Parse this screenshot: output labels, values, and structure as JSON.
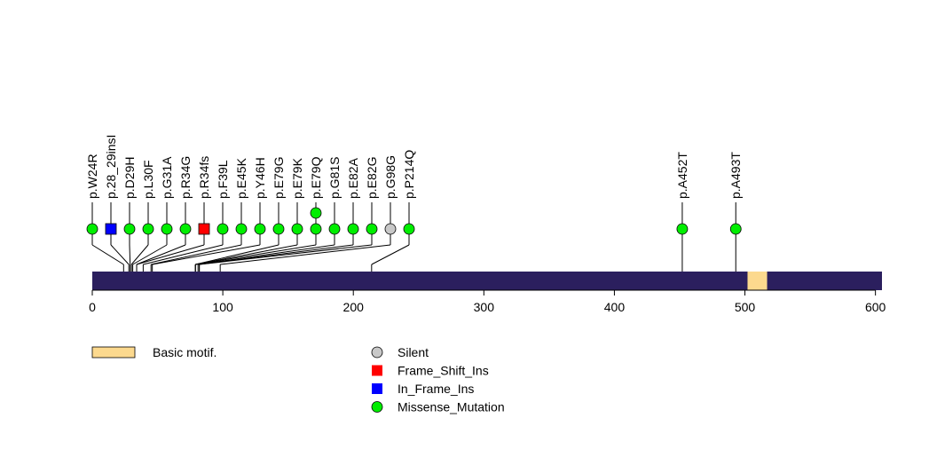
{
  "chart_data": {
    "type": "lollipop",
    "protein_length": 605,
    "axis": {
      "xlim": [
        0,
        605
      ],
      "ticks": [
        0,
        100,
        200,
        300,
        400,
        500,
        600
      ]
    },
    "colors": {
      "backbone": "#2b1f5e",
      "domain": "#fcd98e",
      "Silent": "#c8c8c8",
      "Frame_Shift_Ins": "#ff0000",
      "In_Frame_Ins": "#0000ff",
      "Missense_Mutation": "#00ee00"
    },
    "domains": [
      {
        "name": "Basic motif.",
        "start": 502,
        "end": 517
      }
    ],
    "mutations": [
      {
        "label": "p.W24R",
        "position": 24,
        "type": "Missense_Mutation",
        "count": 1
      },
      {
        "label": "p.28_29insI",
        "position": 28,
        "type": "In_Frame_Ins",
        "count": 1
      },
      {
        "label": "p.D29H",
        "position": 29,
        "type": "Missense_Mutation",
        "count": 1
      },
      {
        "label": "p.L30F",
        "position": 30,
        "type": "Missense_Mutation",
        "count": 1
      },
      {
        "label": "p.G31A",
        "position": 31,
        "type": "Missense_Mutation",
        "count": 1
      },
      {
        "label": "p.R34G",
        "position": 34,
        "type": "Missense_Mutation",
        "count": 1
      },
      {
        "label": "p.R34fs",
        "position": 34,
        "type": "Frame_Shift_Ins",
        "count": 1
      },
      {
        "label": "p.F39L",
        "position": 39,
        "type": "Missense_Mutation",
        "count": 1
      },
      {
        "label": "p.E45K",
        "position": 45,
        "type": "Missense_Mutation",
        "count": 1
      },
      {
        "label": "p.Y46H",
        "position": 46,
        "type": "Missense_Mutation",
        "count": 1
      },
      {
        "label": "p.E79G",
        "position": 79,
        "type": "Missense_Mutation",
        "count": 1
      },
      {
        "label": "p.E79K",
        "position": 79,
        "type": "Missense_Mutation",
        "count": 1
      },
      {
        "label": "p.E79Q",
        "position": 79,
        "type": "Missense_Mutation",
        "count": 2
      },
      {
        "label": "p.G81S",
        "position": 81,
        "type": "Missense_Mutation",
        "count": 1
      },
      {
        "label": "p.E82A",
        "position": 82,
        "type": "Missense_Mutation",
        "count": 1
      },
      {
        "label": "p.E82G",
        "position": 82,
        "type": "Missense_Mutation",
        "count": 1
      },
      {
        "label": "p.G98G",
        "position": 98,
        "type": "Silent",
        "count": 1
      },
      {
        "label": "p.P214Q",
        "position": 214,
        "type": "Missense_Mutation",
        "count": 1
      },
      {
        "label": "p.A452T",
        "position": 452,
        "type": "Missense_Mutation",
        "count": 1
      },
      {
        "label": "p.A493T",
        "position": 493,
        "type": "Missense_Mutation",
        "count": 1
      }
    ],
    "legend_domains": [
      {
        "name": "Basic motif."
      }
    ],
    "legend_mutations": [
      {
        "type": "Silent",
        "label": "Silent"
      },
      {
        "type": "Frame_Shift_Ins",
        "label": "Frame_Shift_Ins"
      },
      {
        "type": "In_Frame_Ins",
        "label": "In_Frame_Ins"
      },
      {
        "type": "Missense_Mutation",
        "label": "Missense_Mutation"
      }
    ]
  }
}
